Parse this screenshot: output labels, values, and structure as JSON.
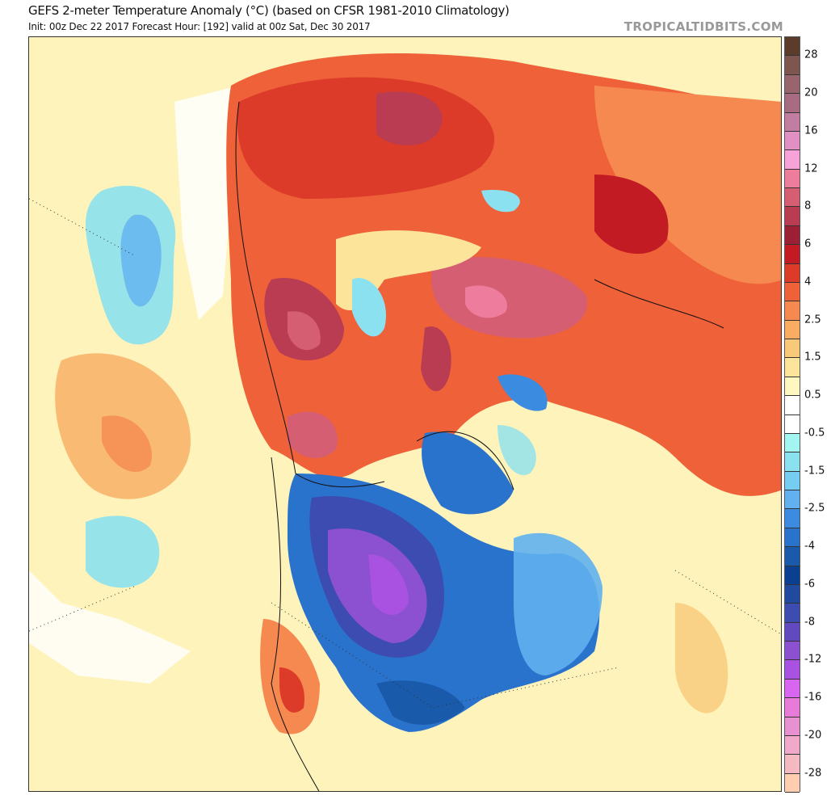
{
  "header": {
    "title": "GEFS 2-meter Temperature Anomaly (°C) (based on CFSR 1981-2010 Climatology)",
    "subtitle": "Init: 00z Dec 22 2017   Forecast Hour: [192]   valid at 00z Sat, Dec 30 2017",
    "brand": "TROPICALTIDBITS.COM"
  },
  "colorbar": {
    "unit": "°C",
    "colors": [
      "#5b3b2a",
      "#7e5650",
      "#98646e",
      "#a86c82",
      "#c27ea2",
      "#e090c2",
      "#f8a2da",
      "#ee7c9c",
      "#d55e72",
      "#b93c52",
      "#9b2036",
      "#c21b23",
      "#dd3b29",
      "#ee6139",
      "#f5894f",
      "#f8ad62",
      "#f9c97a",
      "#fce49b",
      "#fef7bf",
      "#ffffff",
      "#ffffff",
      "#a2f5f0",
      "#8ce1f0",
      "#75cdf2",
      "#61b1f0",
      "#3b8be0",
      "#2a73cc",
      "#1a5aaa",
      "#0b4090",
      "#214a9e",
      "#3d4cb0",
      "#6149c0",
      "#8b51d0",
      "#a951e0",
      "#d966ee",
      "#e87bd8",
      "#e891d0",
      "#f0a9c8",
      "#f5b9c1",
      "#ffcdb0"
    ],
    "labels": [
      {
        "text": "28",
        "index": 1
      },
      {
        "text": "20",
        "index": 3
      },
      {
        "text": "16",
        "index": 5
      },
      {
        "text": "12",
        "index": 7
      },
      {
        "text": "8",
        "index": 9
      },
      {
        "text": "6",
        "index": 11
      },
      {
        "text": "4",
        "index": 13
      },
      {
        "text": "2.5",
        "index": 15
      },
      {
        "text": "1.5",
        "index": 17
      },
      {
        "text": "0.5",
        "index": 19
      },
      {
        "text": "-0.5",
        "index": 21
      },
      {
        "text": "-1.5",
        "index": 23
      },
      {
        "text": "-2.5",
        "index": 25
      },
      {
        "text": "-4",
        "index": 27
      },
      {
        "text": "-6",
        "index": 29
      },
      {
        "text": "-8",
        "index": 31
      },
      {
        "text": "-12",
        "index": 33
      },
      {
        "text": "-16",
        "index": 35
      },
      {
        "text": "-20",
        "index": 37
      },
      {
        "text": "-28",
        "index": 39
      }
    ]
  }
}
